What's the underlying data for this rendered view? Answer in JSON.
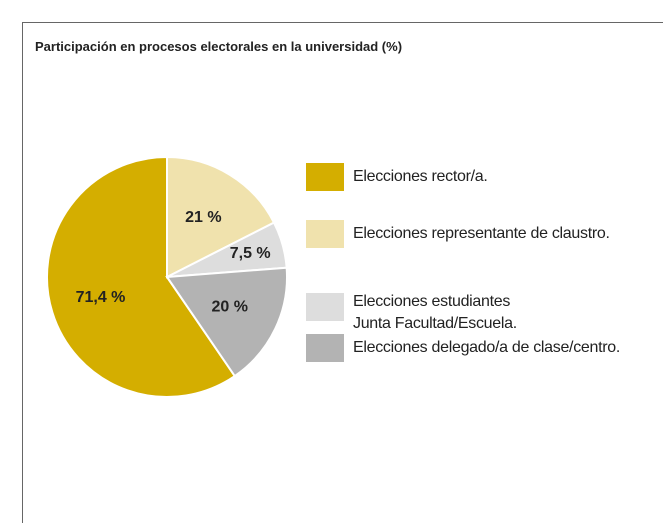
{
  "chart_data": {
    "type": "pie",
    "title": "Participación en procesos electorales en la universidad (%)",
    "categories": [
      "Elecciones rector/a.",
      "Elecciones representante de claustro.",
      "Elecciones estudiantes\nJunta Facultad/Escuela.",
      "Elecciones delegado/a de clase/centro."
    ],
    "values": [
      71.4,
      21,
      7.5,
      20
    ],
    "value_labels": [
      "71,4 %",
      "21 %",
      "7,5 %",
      "20 %"
    ],
    "colors": [
      "#d4ae00",
      "#f0e2ad",
      "#dddddd",
      "#b3b3b3"
    ]
  }
}
